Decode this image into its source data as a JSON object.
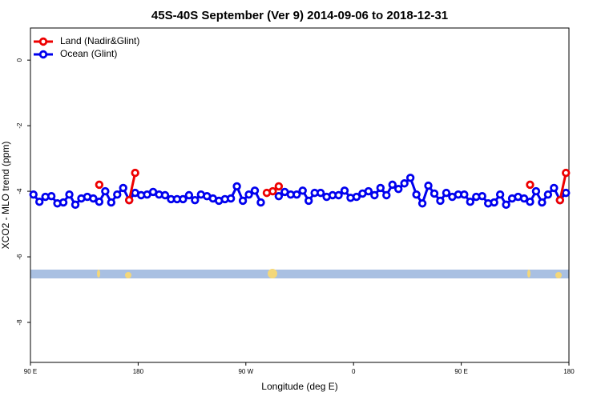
{
  "chart_data": {
    "type": "line",
    "title": "45S-40S September (Ver 9)   2014-09-06 to 2018-12-31",
    "x_label": "Longitude (deg E)",
    "y_label": "XCO2 - MLO trend (ppm)",
    "x": [
      92.5,
      97.5,
      102.5,
      107.5,
      112.5,
      117.5,
      122.5,
      127.5,
      132.5,
      137.5,
      142.5,
      147.5,
      152.5,
      157.5,
      162.5,
      167.5,
      172.5,
      177.5,
      182.5,
      187.5,
      192.5,
      197.5,
      202.5,
      207.5,
      212.5,
      217.5,
      222.5,
      227.5,
      232.5,
      237.5,
      242.5,
      247.5,
      252.5,
      257.5,
      262.5,
      267.5,
      272.5,
      277.5,
      282.5,
      287.5,
      292.5,
      297.5,
      302.5,
      307.5,
      312.5,
      317.5,
      322.5,
      327.5,
      332.5,
      337.5,
      342.5,
      347.5,
      352.5,
      357.5,
      362.5,
      367.5,
      372.5,
      377.5,
      382.5,
      387.5,
      392.5,
      397.5,
      402.5,
      407.5,
      412.5,
      417.5,
      422.5,
      427.5,
      432.5,
      437.5,
      442.5,
      447.5,
      452.5,
      457.5,
      462.5,
      467.5,
      472.5,
      477.5,
      482.5,
      487.5,
      492.5,
      497.5,
      502.5,
      507.5,
      512.5,
      517.5,
      522.5,
      527.5,
      532.5,
      537.5
    ],
    "series": [
      {
        "name": "Ocean (Glint)",
        "color": "#0000ee",
        "values": [
          -4.1,
          -4.32,
          -4.17,
          -4.15,
          -4.37,
          -4.34,
          -4.1,
          -4.41,
          -4.22,
          -4.17,
          -4.22,
          -4.32,
          -4.0,
          -4.34,
          -4.1,
          -3.9,
          -4.27,
          -4.05,
          -4.12,
          -4.1,
          -4.02,
          -4.1,
          -4.12,
          -4.24,
          -4.24,
          -4.24,
          -4.12,
          -4.27,
          -4.1,
          -4.15,
          -4.22,
          -4.29,
          -4.24,
          -4.22,
          -3.85,
          -4.29,
          -4.1,
          -3.98,
          -4.34,
          null,
          null,
          -4.15,
          -4.02,
          -4.1,
          -4.1,
          -3.98,
          -4.29,
          -4.05,
          -4.05,
          -4.17,
          -4.12,
          -4.12,
          -3.98,
          -4.2,
          -4.17,
          -4.07,
          -4.0,
          -4.12,
          -3.9,
          -4.12,
          -3.8,
          -3.93,
          -3.76,
          -3.59,
          -4.1,
          -4.37,
          -3.83,
          -4.07,
          -4.29,
          -4.05,
          -4.17,
          -4.1,
          -4.1,
          -4.32,
          -4.17,
          -4.15,
          -4.37,
          -4.34,
          -4.1,
          -4.41,
          -4.22,
          -4.17,
          -4.22,
          -4.32,
          -4.0,
          -4.34,
          -4.1,
          -3.9,
          -4.27,
          -4.05
        ]
      },
      {
        "name": "Land (Nadir&Glint)",
        "color": "#ee0000",
        "values": [
          null,
          null,
          null,
          null,
          null,
          null,
          null,
          null,
          null,
          null,
          null,
          -3.8,
          null,
          null,
          null,
          null,
          -4.27,
          -3.44,
          null,
          null,
          null,
          null,
          null,
          null,
          null,
          null,
          null,
          null,
          null,
          null,
          null,
          null,
          null,
          null,
          null,
          null,
          null,
          null,
          null,
          -4.05,
          -4.0,
          -3.85,
          null,
          null,
          null,
          null,
          null,
          null,
          null,
          null,
          null,
          null,
          null,
          null,
          null,
          null,
          null,
          null,
          null,
          null,
          null,
          null,
          null,
          null,
          null,
          null,
          null,
          null,
          null,
          null,
          null,
          null,
          null,
          null,
          null,
          null,
          null,
          null,
          null,
          null,
          null,
          null,
          null,
          -3.8,
          null,
          null,
          null,
          null,
          -4.27,
          -3.44
        ]
      }
    ],
    "legend_order": [
      1,
      0
    ],
    "xlim": [
      90,
      540
    ],
    "xticks": [
      {
        "value": 90,
        "label": "90 E"
      },
      180,
      {
        "value": 270,
        "label": "90 W"
      },
      {
        "value": 360,
        "label": "0"
      },
      {
        "value": 450,
        "label": "90 E"
      },
      {
        "value": 540,
        "label": "180"
      }
    ],
    "ylim": [
      -9.22,
      0.98
    ],
    "yticks": [
      0,
      -2,
      -4,
      -6,
      -8
    ],
    "legend": "upper left"
  }
}
